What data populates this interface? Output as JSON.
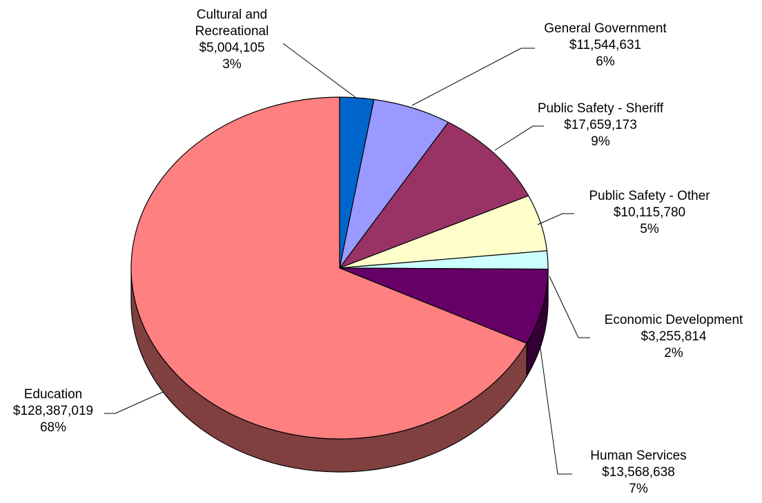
{
  "chart_data": {
    "type": "pie",
    "title": "",
    "three_d": true,
    "start": "12 o'clock, clockwise",
    "slices": [
      {
        "name": "Cultural and Recreational",
        "label_lines": [
          "Cultural and",
          "Recreational"
        ],
        "value_text": "$5,004,105",
        "value": 5004105,
        "percent_text": "3%",
        "color": "#0066CC"
      },
      {
        "name": "General Government",
        "label_lines": [
          "General Government"
        ],
        "value_text": "$11,544,631",
        "value": 11544631,
        "percent_text": "6%",
        "color": "#9999FF"
      },
      {
        "name": "Public Safety - Sheriff",
        "label_lines": [
          "Public Safety - Sheriff"
        ],
        "value_text": "$17,659,173",
        "value": 17659173,
        "percent_text": "9%",
        "color": "#993366"
      },
      {
        "name": "Public Safety - Other",
        "label_lines": [
          "Public Safety - Other"
        ],
        "value_text": "$10,115,780",
        "value": 10115780,
        "percent_text": "5%",
        "color": "#FFFFCC"
      },
      {
        "name": "Economic Development",
        "label_lines": [
          "Economic Development"
        ],
        "value_text": "$3,255,814",
        "value": 3255814,
        "percent_text": "2%",
        "color": "#CCFFFF"
      },
      {
        "name": "Human Services",
        "label_lines": [
          "Human Services"
        ],
        "value_text": "$13,568,638",
        "value": 13568638,
        "percent_text": "7%",
        "color": "#660066"
      },
      {
        "name": "Education",
        "label_lines": [
          "Education"
        ],
        "value_text": "$128,387,019",
        "value": 128387019,
        "percent_text": "68%",
        "color": "#FF8080"
      }
    ]
  }
}
